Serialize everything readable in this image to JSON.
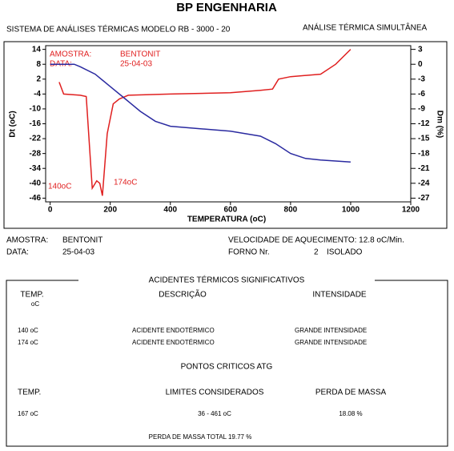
{
  "header": {
    "title": "BP ENGENHARIA",
    "system": "SISTEMA DE ANÁLISES TÉRMICAS MODELO RB - 3000 - 20",
    "mode": "ANÁLISE TÉRMICA SIMULTÂNEA"
  },
  "chart_data": {
    "type": "line",
    "x_label": "TEMPERATURA (oC)",
    "y_label": "Dt (oC)",
    "y2_label": "Dm (%)",
    "annotations": [
      "AMOSTRA:",
      "DATA:",
      "BENTONIT",
      "25-04-03",
      "140oC",
      "174oC"
    ],
    "xlim": [
      -15,
      1200
    ],
    "xticks": [
      0,
      200,
      400,
      600,
      800,
      1000,
      1200
    ],
    "ylim": [
      -47.5,
      15.5
    ],
    "yticks": [
      14,
      8,
      2,
      -4,
      -10,
      -16,
      -22,
      -28,
      -34,
      -40,
      -46
    ],
    "y2lim": [
      -27.75,
      3.75
    ],
    "y2ticks": [
      3,
      0,
      -3,
      -6,
      -9,
      -12,
      -15,
      -18,
      -21,
      -24,
      -27
    ],
    "series": [
      {
        "color": "#e02020",
        "axis": "y",
        "x": [
          30,
          45,
          100,
          120,
          140,
          155,
          165,
          174,
          190,
          210,
          230,
          260,
          400,
          600,
          700,
          740,
          760,
          800,
          900,
          950,
          1000
        ],
        "values": [
          0.8,
          -4,
          -4.5,
          -5,
          -42,
          -39,
          -40,
          -45,
          -20,
          -8,
          -6,
          -4.5,
          -4,
          -3.5,
          -2.5,
          -2,
          2,
          3,
          4,
          8,
          14
        ]
      },
      {
        "color": "#2a2aa0",
        "axis": "y2",
        "x": [
          0,
          80,
          100,
          150,
          200,
          250,
          300,
          350,
          400,
          500,
          600,
          700,
          750,
          800,
          850,
          900,
          1000
        ],
        "values": [
          0,
          0,
          -0.5,
          -2,
          -4.5,
          -7,
          -9.5,
          -11.5,
          -12.5,
          -13,
          -13.5,
          -14.5,
          -16,
          -18,
          -19,
          -19.3,
          -19.7
        ]
      }
    ]
  },
  "info": {
    "sample_label": "AMOSTRA:",
    "sample": "BENTONIT",
    "date_label": "DATA:",
    "date": "25-04-03",
    "rate": "VELOCIDADE DE AQUECIMENTO: 12.8 oC/Min.",
    "furnace_label": "FORNO Nr.",
    "furnace": "2",
    "furnace_type": "ISOLADO"
  },
  "report": {
    "title": "ACIDENTES TÉRMICOS SIGNIFICATIVOS",
    "headers": [
      "TEMP.",
      "oC",
      "DESCRIÇÃO",
      "INTENSIDADE"
    ],
    "rows": [
      [
        "140 oC",
        "ACIDENTE ENDOTÉRMICO",
        "GRANDE INTENSIDADE"
      ],
      [
        "174 oC",
        "ACIDENTE ENDOTÉRMICO",
        "GRANDE INTENSIDADE"
      ]
    ],
    "atg_title": "PONTOS CRITICOS ATG",
    "atg_headers": [
      "TEMP.",
      "LIMITES CONSIDERADOS",
      "PERDA DE MASSA"
    ],
    "atg_row": [
      "167 oC",
      "36 - 461 oC",
      "18.08 %"
    ],
    "total": "PERDA DE MASSA TOTAL 19.77 %"
  }
}
